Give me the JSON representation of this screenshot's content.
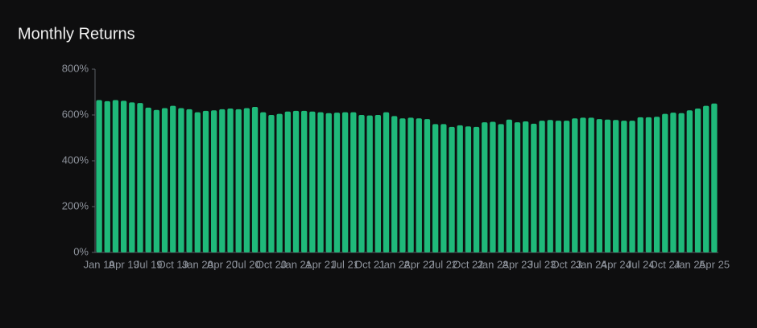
{
  "chart_data": {
    "type": "bar",
    "title": "Monthly Returns",
    "categories": [
      "Jan 19",
      null,
      null,
      "Apr 19",
      null,
      null,
      "Jul 19",
      null,
      null,
      "Oct 19",
      null,
      null,
      "Jan 20",
      null,
      null,
      "Apr 20",
      null,
      null,
      "Jul 20",
      null,
      null,
      "Oct 20",
      null,
      null,
      "Jan 21",
      null,
      null,
      "Apr 21",
      null,
      null,
      "Jul 21",
      null,
      null,
      "Oct 21",
      null,
      null,
      "Jan 22",
      null,
      null,
      "Apr 22",
      null,
      null,
      "Jul 22",
      null,
      null,
      "Oct 22",
      null,
      null,
      "Jan 23",
      null,
      null,
      "Apr 23",
      null,
      null,
      "Jul 23",
      null,
      null,
      "Oct 23",
      null,
      null,
      "Jan 24",
      null,
      null,
      "Apr 24",
      null,
      null,
      "Jul 24",
      null,
      null,
      "Oct 24",
      null,
      null,
      "Jan 25",
      null,
      null,
      "Apr 25"
    ],
    "values": [
      665,
      660,
      665,
      662,
      655,
      652,
      632,
      622,
      630,
      640,
      630,
      625,
      612,
      618,
      620,
      625,
      628,
      625,
      630,
      635,
      612,
      600,
      605,
      615,
      618,
      618,
      615,
      612,
      608,
      610,
      612,
      612,
      600,
      598,
      600,
      612,
      595,
      585,
      588,
      585,
      582,
      560,
      560,
      548,
      555,
      550,
      548,
      568,
      570,
      560,
      580,
      568,
      572,
      562,
      575,
      578,
      575,
      575,
      585,
      588,
      588,
      582,
      580,
      578,
      575,
      575,
      590,
      590,
      592,
      605,
      610,
      608,
      620,
      628,
      640,
      650
    ],
    "color": "#1fb97a",
    "ylim": [
      0,
      800
    ],
    "yticks": [
      {
        "value": 0,
        "label": "0%"
      },
      {
        "value": 200,
        "label": "200%"
      },
      {
        "value": 400,
        "label": "400%"
      },
      {
        "value": 600,
        "label": "600%"
      },
      {
        "value": 800,
        "label": "800%"
      }
    ],
    "grid": false
  }
}
